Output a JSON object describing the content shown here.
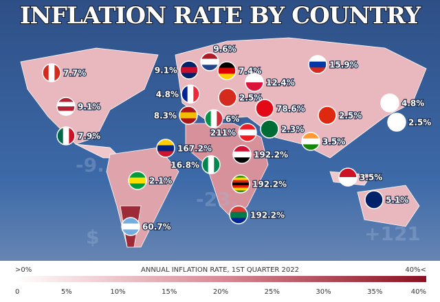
{
  "title": "INFLATION RATE BY COUNTRY",
  "background_text": [
    "-9.",
    "-23.",
    "+121",
    "$"
  ],
  "countries": [
    {
      "label": "7.7%"
    },
    {
      "label": "9.1%"
    },
    {
      "label": "7.9%"
    },
    {
      "label": "167.2%"
    },
    {
      "label": "2.1%"
    },
    {
      "label": "60.7%"
    },
    {
      "label": "9.1%"
    },
    {
      "label": "9.6%"
    },
    {
      "label": "7.4%"
    },
    {
      "label": "4.8%"
    },
    {
      "label": "12.4%"
    },
    {
      "label": "15.9%"
    },
    {
      "label": "2.5%"
    },
    {
      "label": "78.6%"
    },
    {
      "label": "8.3%"
    },
    {
      "label": "6%"
    },
    {
      "label": "211%"
    },
    {
      "label": "2.3%"
    },
    {
      "label": "2.5%"
    },
    {
      "label": "4.8%"
    },
    {
      "label": "2.5%"
    },
    {
      "label": "3.5%"
    },
    {
      "label": "16.8%"
    },
    {
      "label": "192.2%"
    },
    {
      "label": "192.2%"
    },
    {
      "label": "192.2%"
    },
    {
      "label": "3.5%"
    },
    {
      "label": "5.1%"
    }
  ],
  "legend": {
    "title": "ANNUAL INFLATION RATE, 1ST QUARTER 2022",
    "min_label": ">0%",
    "max_label": "40%<",
    "ticks": [
      "0",
      "5%",
      "10%",
      "15%",
      "20%",
      "25%",
      "30%",
      "35%",
      "40%"
    ]
  }
}
